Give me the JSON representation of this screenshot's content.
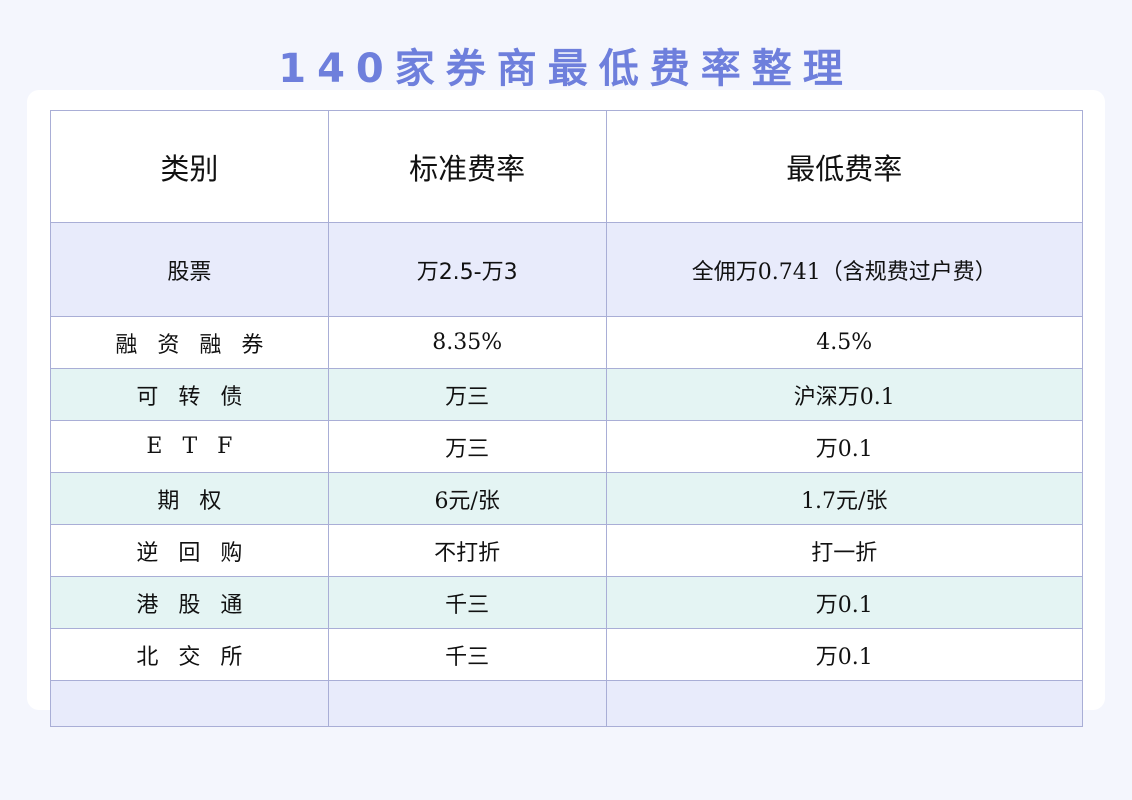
{
  "title": "140家券商最低费率整理",
  "colors": {
    "title": "#6e7fdc",
    "border": "#a9aed6",
    "row_lavender": "#e8ebfb",
    "row_teal": "#e4f4f3"
  },
  "headers": [
    "类别",
    "标准费率",
    "最低费率"
  ],
  "rows": [
    {
      "category": "股票",
      "standard": "万2.5-万3",
      "lowest": "全佣万0.741（含规费过户费）"
    },
    {
      "category": "融资融券",
      "standard": "8.35%",
      "lowest": "4.5%"
    },
    {
      "category": "可转债",
      "standard": "万三",
      "lowest": "沪深万0.1"
    },
    {
      "category": "ETF",
      "standard": "万三",
      "lowest": "万0.1"
    },
    {
      "category": "期权",
      "standard": "6元/张",
      "lowest": "1.7元/张"
    },
    {
      "category": "逆回购",
      "standard": "不打折",
      "lowest": "打一折"
    },
    {
      "category": "港股通",
      "standard": "千三",
      "lowest": "万0.1"
    },
    {
      "category": "北交所",
      "standard": "千三",
      "lowest": "万0.1"
    }
  ]
}
